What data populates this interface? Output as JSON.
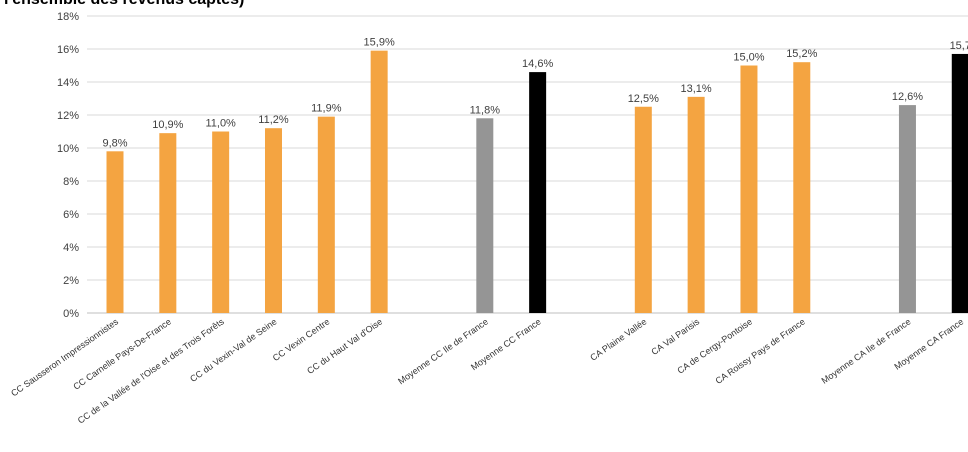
{
  "chart_data": {
    "type": "bar",
    "title": "l'ensemble des revenus captés)",
    "xlabel": "",
    "ylabel": "",
    "ylim": [
      0,
      18
    ],
    "y_ticks": [
      "0%",
      "2%",
      "4%",
      "6%",
      "8%",
      "10%",
      "12%",
      "14%",
      "16%",
      "18%"
    ],
    "grid": true,
    "legend": "none",
    "colors": {
      "cc": "#F4A441",
      "ca": "#F4A441",
      "moyenne_idf": "#959595",
      "moyenne_france": "#000000",
      "grid": "#d9d9d9",
      "text": "#404040"
    },
    "categories": [
      "CC Sausseron Impressionnistes",
      "CC Carnelle Pays-De-France",
      "CC de la Vallée de l'Oise et des Trois Forêts",
      "CC du Vexin-Val de Seine",
      "CC Vexin Centre",
      "CC du Haut Val d'Oise",
      "",
      "Moyenne CC Ile de France",
      "Moyenne CC France",
      "",
      "CA Plaine Vallée",
      "CA Val Parisis",
      "CA de Cergy-Pontoise",
      "CA Roissy Pays de France",
      "",
      "Moyenne CA Ile de France",
      "Moyenne CA France"
    ],
    "values": [
      9.8,
      10.9,
      11.0,
      11.2,
      11.9,
      15.9,
      null,
      11.8,
      14.6,
      null,
      12.5,
      13.1,
      15.0,
      15.2,
      null,
      12.6,
      15.7
    ],
    "data_labels": [
      "9,8%",
      "10,9%",
      "11,0%",
      "11,2%",
      "11,9%",
      "15,9%",
      "",
      "11,8%",
      "14,6%",
      "",
      "12,5%",
      "13,1%",
      "15,0%",
      "15,2%",
      "",
      "12,6%",
      "15,7"
    ],
    "bar_groups": [
      "cc",
      "cc",
      "cc",
      "cc",
      "cc",
      "cc",
      "",
      "moyenne_idf",
      "moyenne_france",
      "",
      "ca",
      "ca",
      "ca",
      "ca",
      "",
      "moyenne_idf",
      "moyenne_france"
    ]
  }
}
